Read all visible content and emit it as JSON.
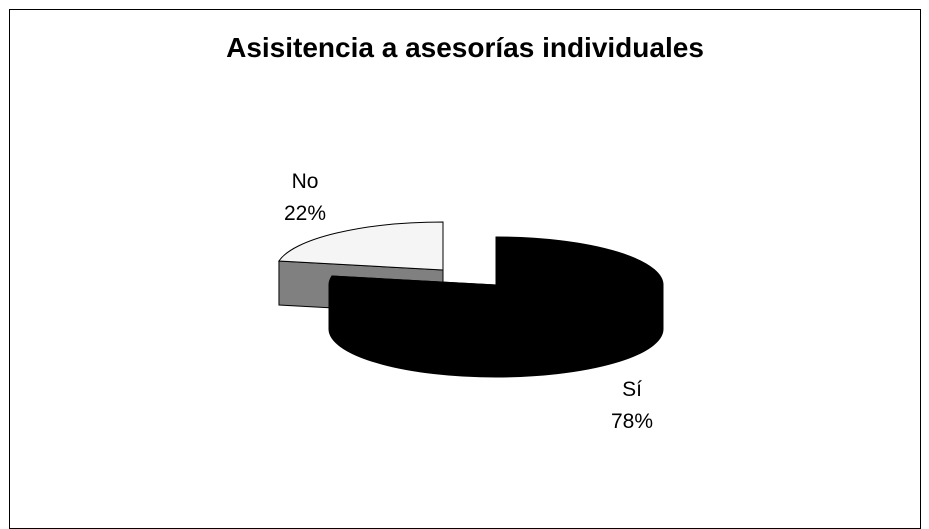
{
  "chart_data": {
    "type": "pie",
    "style": "3d-exploded",
    "title": "Asisitencia a asesorías individuales",
    "slices": [
      {
        "label": "Sí",
        "percent_label": "78%",
        "value": 78,
        "color": "#000000"
      },
      {
        "label": "No",
        "percent_label": "22%",
        "value": 22,
        "color": "#f5f5f5"
      }
    ],
    "legend": "none",
    "colors": {
      "frame": "#000000",
      "background": "#ffffff",
      "no_side": "#808080"
    }
  }
}
